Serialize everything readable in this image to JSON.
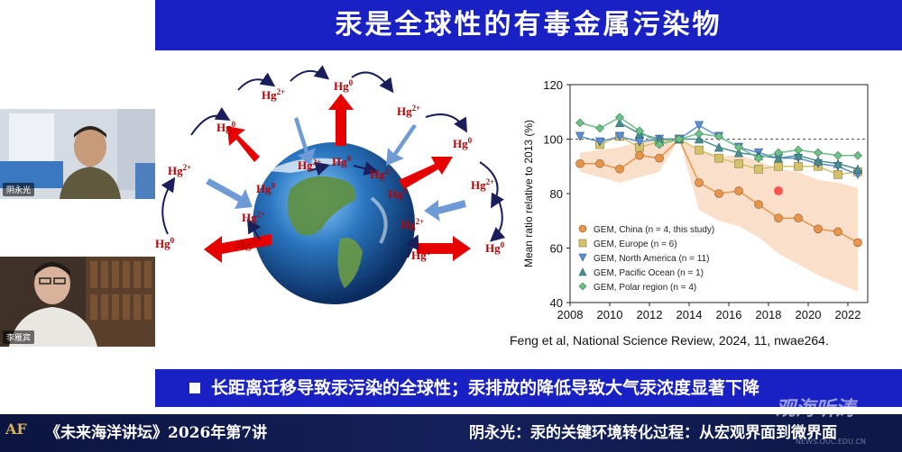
{
  "slide": {
    "title": "汞是全球性的有毒金属污染物",
    "citation": "Feng et al, National Science Review, 2024, 11, nwae264.",
    "bullet": "长距离迁移导致汞污染的全球性；汞排放的降低导致大气汞浓度显著下降",
    "diagram_labels": {
      "hg0": "Hg",
      "hg0_sup": "0",
      "hg2": "Hg",
      "hg2_sup": "2+"
    }
  },
  "participants": [
    {
      "name": "阴永光"
    },
    {
      "name": "李雁宾"
    }
  ],
  "caption": {
    "left": "《未来海洋讲坛》2026年第7讲",
    "right": "阴永光：汞的关键环境转化过程：从宏观界面到微界面",
    "logo": "AF",
    "watermark": "观海听涛",
    "watermark_sub": "NEWS.OUC.EDU.CN"
  },
  "chart_data": {
    "type": "line",
    "xlabel": "",
    "ylabel": "Mean ratio relative to 2013 (%)",
    "xlim": [
      2008,
      2023
    ],
    "ylim": [
      40,
      120
    ],
    "xticks": [
      2008,
      2010,
      2012,
      2014,
      2016,
      2018,
      2020,
      2022
    ],
    "yticks": [
      40,
      60,
      80,
      100,
      120
    ],
    "reference_line": 100,
    "series": [
      {
        "name": "GEM, China (n = 4, this study)",
        "color": "#e8944a",
        "marker": "circle",
        "x": [
          2008.5,
          2009.5,
          2010.5,
          2011.5,
          2012.5,
          2013.5,
          2014.5,
          2015.5,
          2016.5,
          2017.5,
          2018.5,
          2019.5,
          2020.5,
          2021.5,
          2022.5
        ],
        "y": [
          91,
          91,
          89,
          94,
          93,
          100,
          84,
          80,
          81,
          76,
          71,
          71,
          67,
          66,
          62
        ],
        "band_upper": [
          95,
          96,
          97,
          99,
          100,
          100,
          96,
          94,
          94,
          92,
          89,
          88,
          85,
          84,
          82
        ],
        "band_lower": [
          88,
          86,
          84,
          86,
          88,
          100,
          74,
          70,
          68,
          64,
          58,
          54,
          50,
          47,
          44
        ]
      },
      {
        "name": "GEM, Europe (n = 6)",
        "color": "#d4c26a",
        "marker": "square",
        "x": [
          2009.5,
          2010.5,
          2011.5,
          2012.5,
          2013.5,
          2014.5,
          2015.5,
          2016.5,
          2017.5,
          2018.5,
          2019.5,
          2020.5,
          2021.5,
          2022.5
        ],
        "y": [
          98,
          101,
          97,
          99,
          100,
          96,
          93,
          91,
          89,
          90,
          90,
          90,
          87,
          88
        ]
      },
      {
        "name": "GEM, North America (n = 11)",
        "color": "#5b8fd6",
        "marker": "triangle-down",
        "x": [
          2008.5,
          2009.5,
          2010.5,
          2011.5,
          2012.5,
          2013.5,
          2014.5,
          2015.5,
          2016.5,
          2017.5,
          2018.5,
          2019.5,
          2020.5,
          2021.5,
          2022.5
        ],
        "y": [
          101,
          99,
          101,
          99,
          100,
          100,
          105,
          101,
          97,
          95,
          93,
          93,
          91,
          90,
          87
        ]
      },
      {
        "name": "GEM, Pacific Ocean (n = 1)",
        "color": "#4a8f8f",
        "marker": "triangle-up",
        "x": [
          2010.5,
          2011.5,
          2012.5,
          2013.5,
          2014.5,
          2015.5,
          2016.5,
          2017.5,
          2018.5,
          2019.5,
          2020.5,
          2021.5,
          2022.5
        ],
        "y": [
          106,
          102,
          100,
          100,
          100,
          97,
          95,
          94,
          93,
          94,
          92,
          91,
          89
        ]
      },
      {
        "name": "GEM, Polar region (n = 4)",
        "color": "#6fbf8a",
        "marker": "diamond",
        "x": [
          2008.5,
          2009.5,
          2010.5,
          2011.5,
          2012.5,
          2013.5,
          2014.5,
          2015.5,
          2016.5,
          2017.5,
          2018.5,
          2019.5,
          2020.5,
          2021.5,
          2022.5
        ],
        "y": [
          106,
          104,
          108,
          103,
          98,
          100,
          102,
          101,
          97,
          93,
          95,
          96,
          95,
          94,
          94
        ]
      }
    ],
    "legend_placement": "bottom-left"
  }
}
